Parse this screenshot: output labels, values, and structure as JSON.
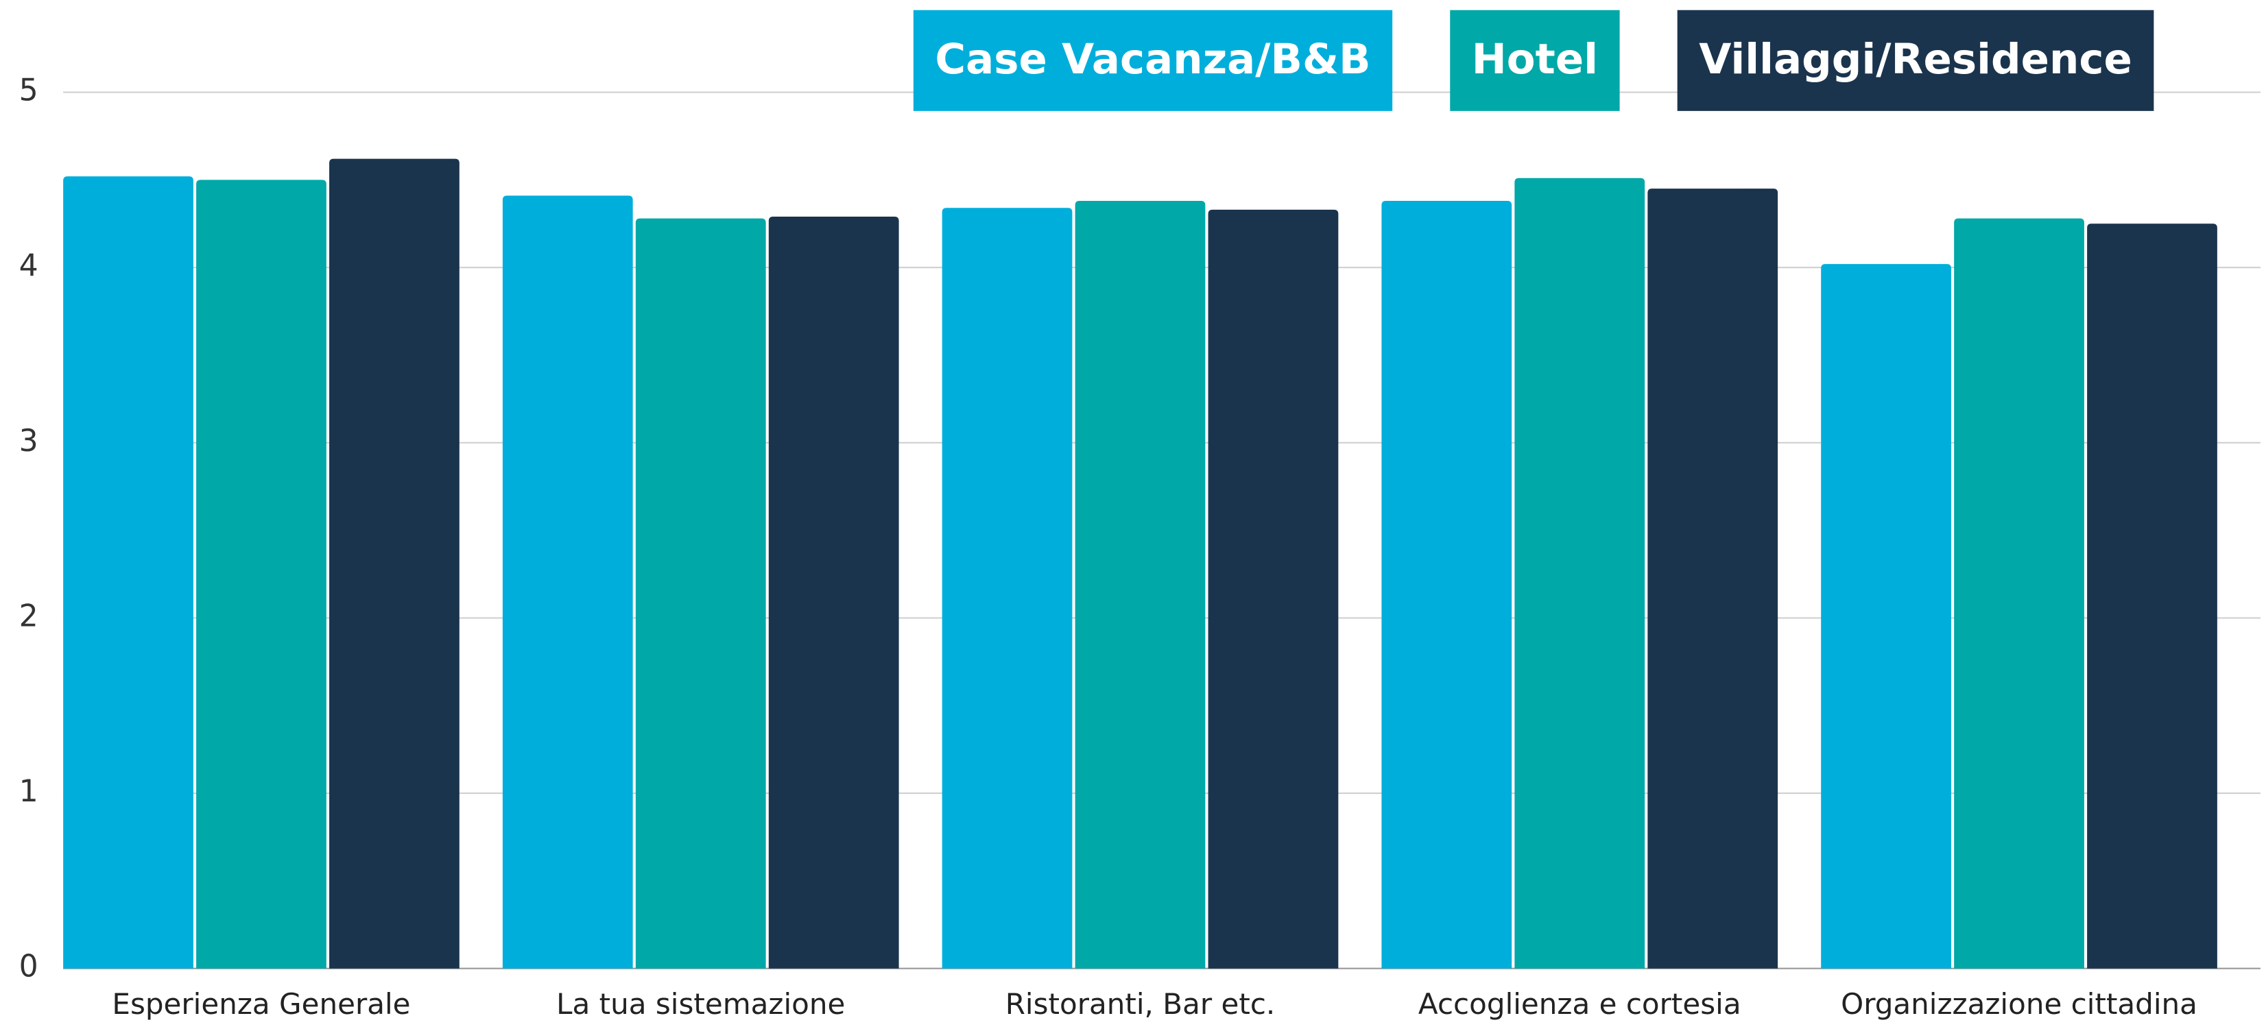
{
  "chart_data": {
    "type": "bar",
    "categories": [
      "Esperienza Generale",
      "La tua sistemazione",
      "Ristoranti, Bar etc.",
      "Accoglienza e cortesia",
      "Organizzazione cittadina"
    ],
    "series": [
      {
        "name": "Case Vacanza/B&B",
        "color": "#00aedb",
        "values": [
          4.52,
          4.41,
          4.34,
          4.38,
          4.02
        ]
      },
      {
        "name": "Hotel",
        "color": "#00a8a8",
        "values": [
          4.5,
          4.28,
          4.38,
          4.51,
          4.28
        ]
      },
      {
        "name": "Villaggi/Residence",
        "color": "#1b344d",
        "values": [
          4.62,
          4.29,
          4.33,
          4.45,
          4.25
        ]
      }
    ],
    "ylim": [
      0,
      5
    ],
    "yticks": [
      0,
      1,
      2,
      3,
      4,
      5
    ],
    "grid": true,
    "legend": "top-right"
  }
}
